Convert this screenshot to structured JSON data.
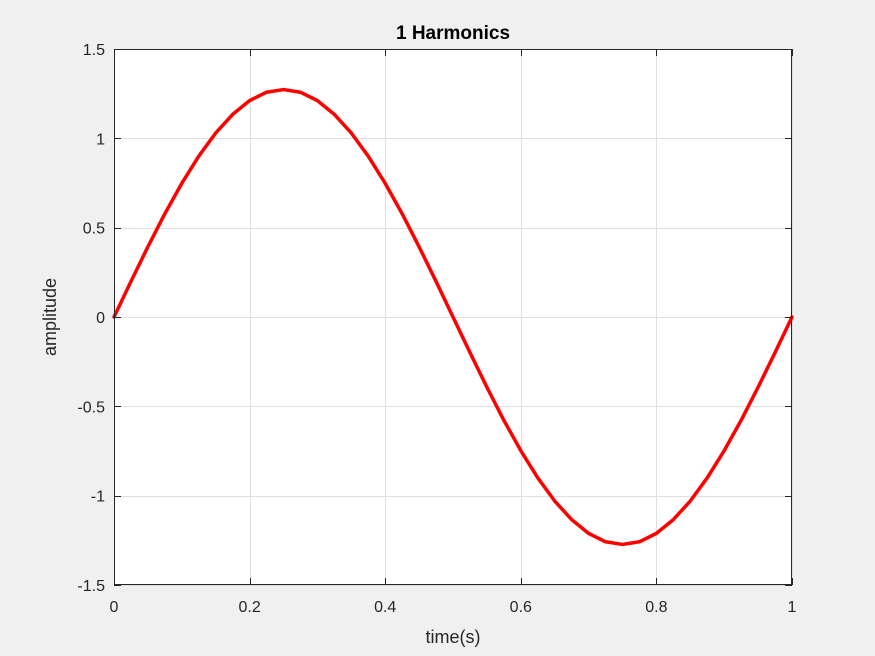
{
  "chart_data": {
    "type": "line",
    "title": "1 Harmonics",
    "xlabel": "time(s)",
    "ylabel": "amplitude",
    "xlim": [
      0,
      1
    ],
    "ylim": [
      -1.5,
      1.5
    ],
    "grid": true,
    "x_ticks": [
      0,
      0.2,
      0.4,
      0.6,
      0.8,
      1
    ],
    "y_ticks": [
      -1.5,
      -1,
      -0.5,
      0,
      0.5,
      1,
      1.5
    ],
    "x_tick_labels": [
      "0",
      "0.2",
      "0.4",
      "0.6",
      "0.8",
      "1"
    ],
    "y_tick_labels": [
      "-1.5",
      "-1",
      "-0.5",
      "0",
      "0.5",
      "1",
      "1.5"
    ],
    "series": [
      {
        "color": "#ff0000",
        "x": [
          0,
          0.025,
          0.05,
          0.075,
          0.1,
          0.125,
          0.15,
          0.175,
          0.2,
          0.225,
          0.25,
          0.275,
          0.3,
          0.325,
          0.35,
          0.375,
          0.4,
          0.425,
          0.45,
          0.475,
          0.5,
          0.525,
          0.55,
          0.575,
          0.6,
          0.625,
          0.65,
          0.675,
          0.7,
          0.725,
          0.75,
          0.775,
          0.8,
          0.825,
          0.85,
          0.875,
          0.9,
          0.925,
          0.95,
          0.975,
          1
        ],
        "y": [
          0,
          0.199,
          0.393,
          0.578,
          0.748,
          0.9,
          1.03,
          1.134,
          1.211,
          1.258,
          1.273,
          1.258,
          1.211,
          1.134,
          1.03,
          0.9,
          0.748,
          0.578,
          0.393,
          0.199,
          0,
          -0.199,
          -0.393,
          -0.578,
          -0.748,
          -0.9,
          -1.03,
          -1.134,
          -1.211,
          -1.258,
          -1.273,
          -1.258,
          -1.211,
          -1.134,
          -1.03,
          -0.9,
          -0.748,
          -0.578,
          -0.393,
          -0.199,
          0
        ]
      }
    ]
  },
  "colors": {
    "figure_background": "#f0f0f0",
    "axes_background": "#ffffff",
    "grid": "#dfdfdf",
    "axes_line": "#262626"
  }
}
